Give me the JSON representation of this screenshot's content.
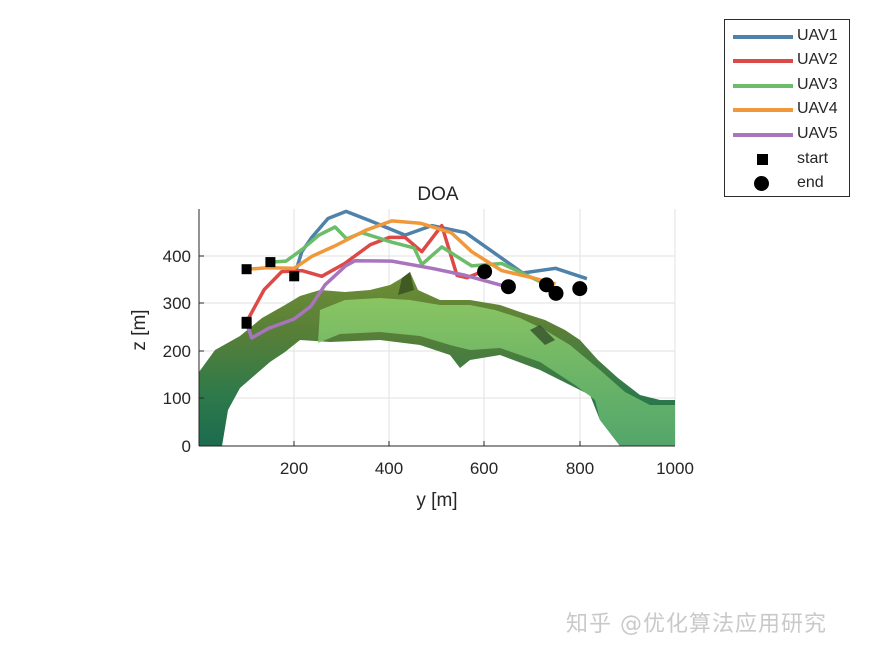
{
  "chart_data": {
    "type": "line",
    "title": "DOA",
    "xlabel": "y [m]",
    "ylabel": "z [m]",
    "xlim": [
      0,
      1000
    ],
    "ylim": [
      0,
      500
    ],
    "xticks": [
      200,
      400,
      600,
      800,
      1000
    ],
    "yticks": [
      0,
      100,
      200,
      300,
      400
    ],
    "grid": true,
    "legend_position": "outside top-right",
    "background_surface": "terrain (green colormap) profile",
    "series": [
      {
        "name": "UAV1",
        "color": "#4f82aa",
        "y": [
          200,
          216,
          237,
          271,
          309,
          360,
          433,
          489,
          560,
          680,
          749,
          815
        ],
        "z": [
          358,
          410,
          440,
          480,
          495,
          475,
          445,
          465,
          450,
          365,
          375,
          353
        ]
      },
      {
        "name": "UAV2",
        "color": "#dc4a47",
        "y": [
          100,
          137,
          174,
          216,
          258,
          306,
          360,
          400,
          433,
          468,
          510,
          542,
          563,
          600
        ],
        "z": [
          262,
          330,
          368,
          370,
          358,
          385,
          425,
          440,
          440,
          410,
          465,
          360,
          355,
          370
        ]
      },
      {
        "name": "UAV3",
        "color": "#6bbd6a",
        "y": [
          150,
          183,
          217,
          252,
          286,
          310,
          342,
          405,
          452,
          468,
          510,
          573,
          636,
          735
        ],
        "z": [
          388,
          390,
          415,
          445,
          462,
          437,
          450,
          430,
          418,
          383,
          420,
          380,
          385,
          338
        ]
      },
      {
        "name": "UAV4",
        "color": "#f0983a",
        "y": [
          100,
          143,
          200,
          237,
          285,
          350,
          405,
          465,
          530,
          573,
          636,
          700,
          749
        ],
        "z": [
          373,
          376,
          375,
          400,
          422,
          455,
          475,
          470,
          450,
          410,
          370,
          355,
          342
        ]
      },
      {
        "name": "UAV5",
        "color": "#a874bd",
        "y": [
          100,
          111,
          146,
          200,
          235,
          265,
          308,
          328,
          405,
          489,
          560,
          650
        ],
        "z": [
          258,
          228,
          248,
          268,
          295,
          340,
          380,
          391,
          390,
          375,
          360,
          335
        ]
      }
    ],
    "markers": {
      "start": {
        "shape": "square",
        "color": "#000000",
        "points": [
          {
            "y": 200,
            "z": 358
          },
          {
            "y": 100,
            "z": 262
          },
          {
            "y": 150,
            "z": 388
          },
          {
            "y": 100,
            "z": 373
          },
          {
            "y": 100,
            "z": 258
          }
        ]
      },
      "end": {
        "shape": "circle",
        "color": "#000000",
        "points": [
          {
            "y": 800,
            "z": 332
          },
          {
            "y": 600,
            "z": 368
          },
          {
            "y": 750,
            "z": 322
          },
          {
            "y": 730,
            "z": 340
          },
          {
            "y": 650,
            "z": 336
          }
        ]
      }
    }
  },
  "legend": {
    "items": [
      {
        "label": "UAV1",
        "color": "#4f82aa",
        "kind": "line"
      },
      {
        "label": "UAV2",
        "color": "#dc4a47",
        "kind": "line"
      },
      {
        "label": "UAV3",
        "color": "#6bbd6a",
        "kind": "line"
      },
      {
        "label": "UAV4",
        "color": "#f0983a",
        "kind": "line"
      },
      {
        "label": "UAV5",
        "color": "#a874bd",
        "kind": "line"
      },
      {
        "label": "start",
        "kind": "square"
      },
      {
        "label": "end",
        "kind": "circle"
      }
    ]
  },
  "axes_text": {
    "title": "DOA",
    "xlabel": "y [m]",
    "ylabel": "z [m]",
    "xtick_labels": [
      "200",
      "400",
      "600",
      "800",
      "1000"
    ],
    "ytick_labels": [
      "0",
      "100",
      "200",
      "300",
      "400"
    ]
  },
  "watermark": "知乎 @优化算法应用研究"
}
